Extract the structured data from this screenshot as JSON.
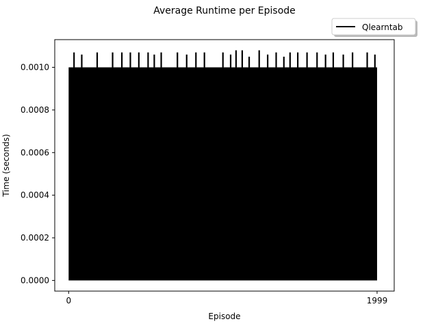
{
  "chart_data": {
    "type": "line",
    "title": "Average Runtime per Episode",
    "xlabel": "Episode",
    "ylabel": "Time (seconds)",
    "xlim": [
      -90,
      2110
    ],
    "ylim": [
      -5e-05,
      0.00113
    ],
    "xticks": [
      0,
      1999
    ],
    "xtick_labels": [
      "0",
      "1999"
    ],
    "yticks": [
      0.0,
      0.0002,
      0.0004,
      0.0006,
      0.0008,
      0.001
    ],
    "ytick_labels": [
      "0.0000",
      "0.0002",
      "0.0004",
      "0.0006",
      "0.0008",
      "0.0010"
    ],
    "grid": false,
    "legend": {
      "position": "top-right, outside axes",
      "entries": [
        "Qlearntab"
      ]
    },
    "series": [
      {
        "name": "Qlearntab",
        "color": "#000000",
        "pattern": "rapid oscillation between ~0.0 and ~0.00100 s across all episodes 0–1999",
        "baseline_low": 0.0,
        "baseline_high": 0.001,
        "spikes": [
          {
            "episode": 35,
            "value": 0.00107
          },
          {
            "episode": 85,
            "value": 0.00106
          },
          {
            "episode": 185,
            "value": 0.00107
          },
          {
            "episode": 285,
            "value": 0.00107
          },
          {
            "episode": 345,
            "value": 0.00107
          },
          {
            "episode": 400,
            "value": 0.00107
          },
          {
            "episode": 455,
            "value": 0.00107
          },
          {
            "episode": 515,
            "value": 0.00107
          },
          {
            "episode": 555,
            "value": 0.00106
          },
          {
            "episode": 600,
            "value": 0.00107
          },
          {
            "episode": 705,
            "value": 0.00107
          },
          {
            "episode": 765,
            "value": 0.00106
          },
          {
            "episode": 825,
            "value": 0.00107
          },
          {
            "episode": 880,
            "value": 0.00107
          },
          {
            "episode": 1000,
            "value": 0.00107
          },
          {
            "episode": 1050,
            "value": 0.00106
          },
          {
            "episode": 1085,
            "value": 0.00108
          },
          {
            "episode": 1125,
            "value": 0.00108
          },
          {
            "episode": 1170,
            "value": 0.00105
          },
          {
            "episode": 1235,
            "value": 0.00108
          },
          {
            "episode": 1290,
            "value": 0.00106
          },
          {
            "episode": 1345,
            "value": 0.00107
          },
          {
            "episode": 1395,
            "value": 0.00105
          },
          {
            "episode": 1435,
            "value": 0.00107
          },
          {
            "episode": 1485,
            "value": 0.00107
          },
          {
            "episode": 1545,
            "value": 0.00107
          },
          {
            "episode": 1610,
            "value": 0.00107
          },
          {
            "episode": 1665,
            "value": 0.00106
          },
          {
            "episode": 1715,
            "value": 0.00107
          },
          {
            "episode": 1780,
            "value": 0.00106
          },
          {
            "episode": 1840,
            "value": 0.00107
          },
          {
            "episode": 1935,
            "value": 0.00107
          },
          {
            "episode": 1985,
            "value": 0.00106
          }
        ]
      }
    ]
  }
}
